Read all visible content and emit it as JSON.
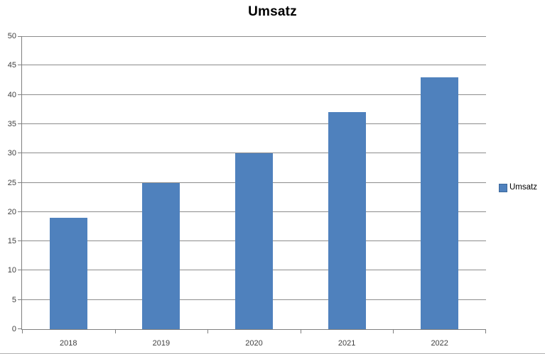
{
  "chart_data": {
    "type": "bar",
    "title": "Umsatz",
    "categories": [
      "2018",
      "2019",
      "2020",
      "2021",
      "2022"
    ],
    "series": [
      {
        "name": "Umsatz",
        "values": [
          19,
          25,
          30,
          37,
          43
        ]
      }
    ],
    "xlabel": "",
    "ylabel": "",
    "ylim": [
      0,
      50
    ],
    "ytick_step": 5,
    "yticks": [
      0,
      5,
      10,
      15,
      20,
      25,
      30,
      35,
      40,
      45,
      50
    ],
    "grid": true,
    "legend_position": "right",
    "legend_labels": [
      "Umsatz"
    ],
    "colors": {
      "bar": "#4f81bd",
      "swatch_border": "#3d699c",
      "gridline": "#8c8c8c",
      "axis": "#7f7f7f",
      "axis_text": "#3f3f3f",
      "title_text": "#000000"
    }
  }
}
